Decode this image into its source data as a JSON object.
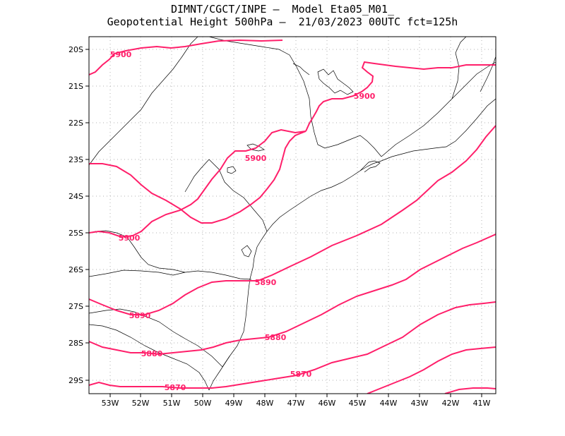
{
  "title": {
    "line1": "DIMNT/CGCT/INPE –  Model Eta05_M01_",
    "line2": "Geopotential Height 500hPa –  21/03/2023 00UTC fct=125h"
  },
  "map": {
    "lon_range": [
      -53.6,
      -40.55
    ],
    "lat_range": [
      -29.4,
      -19.8
    ],
    "lon_ticks": [
      "53W",
      "52W",
      "51W",
      "50W",
      "49W",
      "48W",
      "47W",
      "46W",
      "45W",
      "44W",
      "43W",
      "42W",
      "41W"
    ],
    "lat_ticks": [
      "20S",
      "21S",
      "22S",
      "23S",
      "24S",
      "25S",
      "26S",
      "27S",
      "28S",
      "29S"
    ],
    "grid": "dotted",
    "contour_color": "#ff1f6a",
    "contour_labels": [
      "5900",
      "5900",
      "5900",
      "5900",
      "5890",
      "5890",
      "5880",
      "5880",
      "5870",
      "5870"
    ]
  }
}
